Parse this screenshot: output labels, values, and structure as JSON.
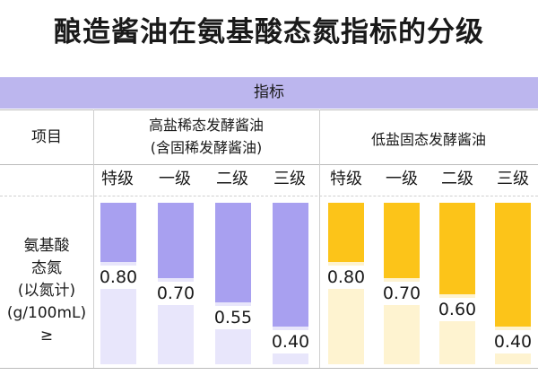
{
  "title": "酿造酱油在氨基酸态氮指标的分级",
  "header": {
    "indicator": "指标",
    "item": "项目",
    "group1": [
      "高盐稀态发酵酱油",
      "(含固稀发酵酱油)"
    ],
    "group2": "低盐固态发酵酱油"
  },
  "row_label": [
    "氨基酸",
    "态氮",
    "(以氮计)",
    "(g/100mL)",
    "≥"
  ],
  "colors": {
    "purple": "#a8a0f0",
    "purple_light": "#e8e6fb",
    "yellow": "#fcc419",
    "yellow_light": "#fef3d0",
    "header_bg": "#bcb6ee"
  },
  "chart_data": {
    "type": "bar",
    "title": "酿造酱油在氨基酸态氮指标的分级",
    "categories": [
      "特级",
      "一级",
      "二级",
      "三级"
    ],
    "series": [
      {
        "name": "高盐稀态发酵酱油(含固稀发酵酱油)",
        "values": [
          0.8,
          0.7,
          0.55,
          0.4
        ],
        "color": "#a8a0f0"
      },
      {
        "name": "低盐固态发酵酱油",
        "values": [
          0.8,
          0.7,
          0.6,
          0.4
        ],
        "color": "#fcc419"
      }
    ],
    "value_labels": [
      [
        "0.80",
        "0.70",
        "0.55",
        "0.40"
      ],
      [
        "0.80",
        "0.70",
        "0.60",
        "0.40"
      ]
    ],
    "ylabel": "氨基酸态氮(以氮计)(g/100mL)≥",
    "ylim": [
      0,
      1.0
    ]
  }
}
